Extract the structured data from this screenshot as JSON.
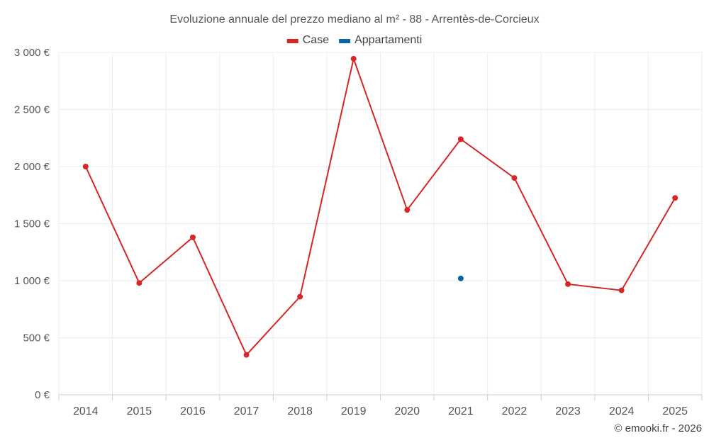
{
  "chart_data": {
    "type": "line",
    "title": "Evoluzione annuale del prezzo mediano al m² - 88 - Arrentès-de-Corcieux",
    "categories": [
      "2014",
      "2015",
      "2016",
      "2017",
      "2018",
      "2019",
      "2020",
      "2021",
      "2022",
      "2023",
      "2024",
      "2025"
    ],
    "ylim": [
      0,
      3000
    ],
    "yticks": [
      0,
      500,
      1000,
      1500,
      2000,
      2500,
      3000
    ],
    "ytick_labels": [
      "0 €",
      "500 €",
      "1 000 €",
      "1 500 €",
      "2 000 €",
      "2 500 €",
      "3 000 €"
    ],
    "grid": true,
    "legend_position": "top-center",
    "series": [
      {
        "name": "Case",
        "color": "#d62728",
        "values": [
          2000,
          980,
          1380,
          350,
          860,
          2945,
          1620,
          2240,
          1900,
          970,
          915,
          1725
        ]
      },
      {
        "name": "Appartamenti",
        "color": "#0a66a6",
        "values": [
          null,
          null,
          null,
          null,
          null,
          null,
          null,
          1020,
          null,
          null,
          null,
          null
        ]
      }
    ]
  },
  "credit": "© emooki.fr - 2026"
}
